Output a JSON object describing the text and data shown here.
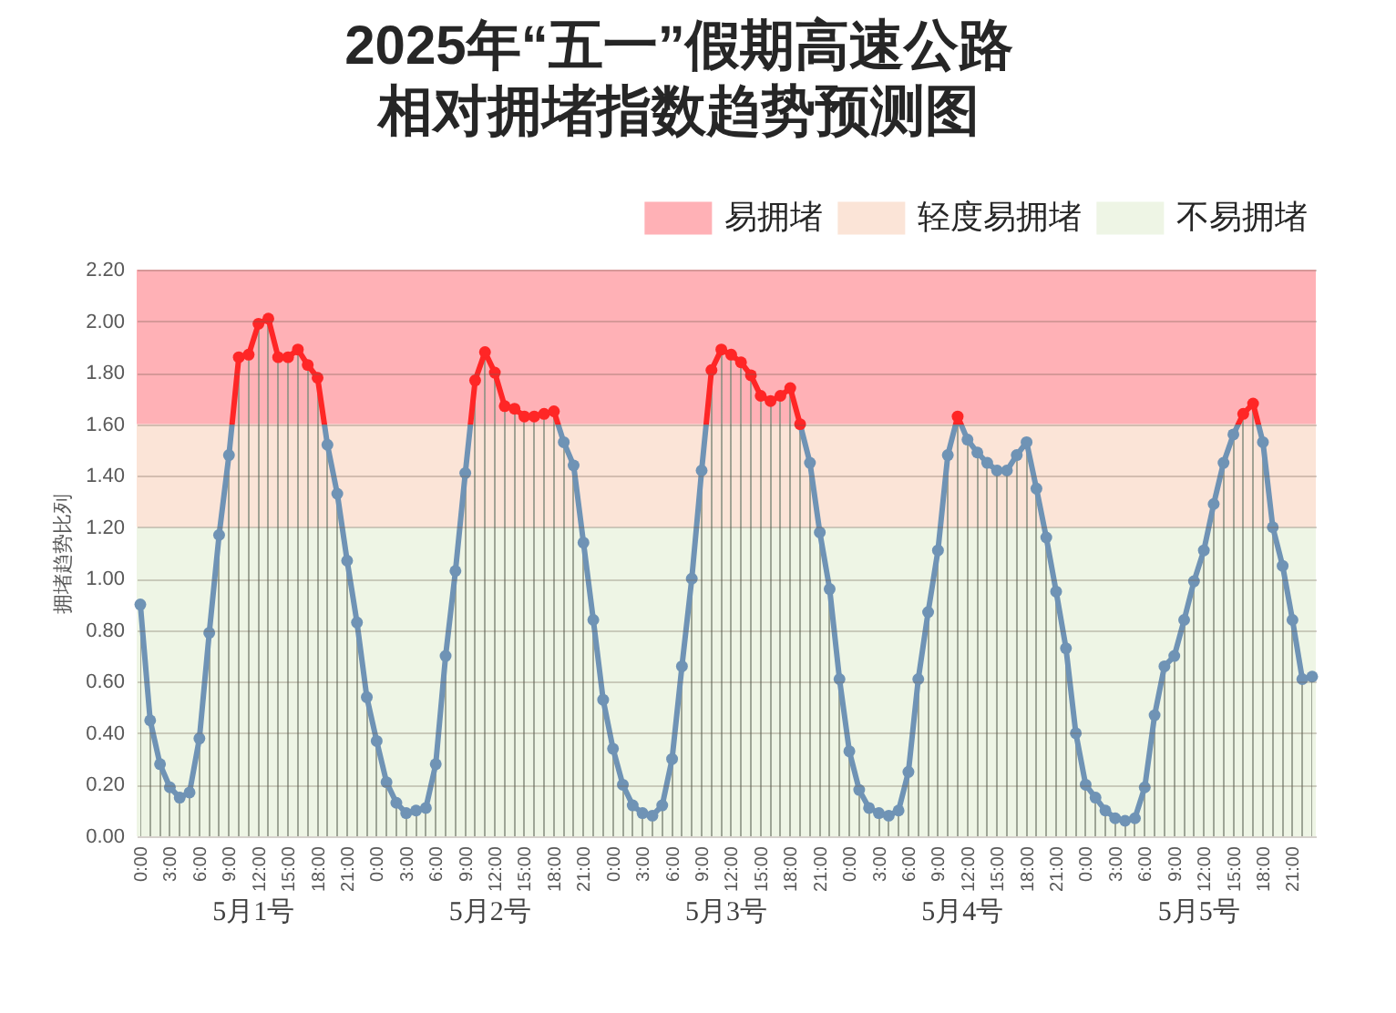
{
  "chart_data": {
    "type": "area",
    "title": "2025年“五一”假期高速公路",
    "subtitle": "相对拥堵指数趋势预测图",
    "ylabel": "拥堵趋势比列",
    "categories": [
      "0:00",
      null,
      null,
      "3:00",
      null,
      null,
      "6:00",
      null,
      null,
      "9:00",
      null,
      null,
      "12:00",
      null,
      null,
      "15:00",
      null,
      null,
      "18:00",
      null,
      null,
      "21:00",
      null,
      null,
      "0:00",
      null,
      null,
      "3:00",
      null,
      null,
      "6:00",
      null,
      null,
      "9:00",
      null,
      null,
      "12:00",
      null,
      null,
      "15:00",
      null,
      null,
      "18:00",
      null,
      null,
      "21:00",
      null,
      null,
      "0:00",
      null,
      null,
      "3:00",
      null,
      null,
      "6:00",
      null,
      null,
      "9:00",
      null,
      null,
      "12:00",
      null,
      null,
      "15:00",
      null,
      null,
      "18:00",
      null,
      null,
      "21:00",
      null,
      null,
      "0:00",
      null,
      null,
      "3:00",
      null,
      null,
      "6:00",
      null,
      null,
      "9:00",
      null,
      null,
      "12:00",
      null,
      null,
      "15:00",
      null,
      null,
      "18:00",
      null,
      null,
      "21:00",
      null,
      null,
      "0:00",
      null,
      null,
      "3:00",
      null,
      null,
      "6:00",
      null,
      null,
      "9:00",
      null,
      null,
      "12:00",
      null,
      null,
      "15:00",
      null,
      null,
      "18:00",
      null,
      null,
      "21:00",
      null,
      null
    ],
    "series": [
      {
        "color": "#6f93b5",
        "values": [
          0.9,
          0.45,
          0.28,
          0.19,
          0.15,
          0.17,
          0.38,
          0.79,
          1.17,
          1.48,
          1.86,
          1.87,
          1.99,
          2.01,
          1.86,
          1.86,
          1.89,
          1.83,
          1.78,
          1.52,
          1.33,
          1.07,
          0.83,
          0.54,
          0.37,
          0.21,
          0.13,
          0.09,
          0.1,
          0.11,
          0.28,
          0.7,
          1.03,
          1.41,
          1.77,
          1.88,
          1.8,
          1.67,
          1.66,
          1.63,
          1.63,
          1.64,
          1.65,
          1.53,
          1.44,
          1.14,
          0.84,
          0.53,
          0.34,
          0.2,
          0.12,
          0.09,
          0.08,
          0.12,
          0.3,
          0.66,
          1.0,
          1.42,
          1.81,
          1.89,
          1.87,
          1.84,
          1.79,
          1.71,
          1.69,
          1.71,
          1.74,
          1.6,
          1.45,
          1.18,
          0.96,
          0.61,
          0.33,
          0.18,
          0.11,
          0.09,
          0.08,
          0.1,
          0.25,
          0.61,
          0.87,
          1.11,
          1.48,
          1.63,
          1.54,
          1.49,
          1.45,
          1.42,
          1.42,
          1.48,
          1.53,
          1.35,
          1.16,
          0.95,
          0.73,
          0.4,
          0.2,
          0.15,
          0.1,
          0.07,
          0.06,
          0.07,
          0.19,
          0.47,
          0.66,
          0.7,
          0.84,
          0.99,
          1.11,
          1.29,
          1.45,
          1.56,
          1.64,
          1.68,
          1.53,
          1.2,
          1.05,
          0.84,
          0.61,
          0.62
        ],
        "colors": [
          "#6f93b5",
          "#6f93b5",
          "#6f93b5",
          "#6f93b5",
          "#6f93b5",
          "#6f93b5",
          "#6f93b5",
          "#6f93b5",
          "#6f93b5",
          "#6f93b5",
          "#ff2626",
          "#ff2626",
          "#ff2626",
          "#ff2626",
          "#ff2626",
          "#ff2626",
          "#ff2626",
          "#ff2626",
          "#ff2626",
          "#6f93b5",
          "#6f93b5",
          "#6f93b5",
          "#6f93b5",
          "#6f93b5",
          "#6f93b5",
          "#6f93b5",
          "#6f93b5",
          "#6f93b5",
          "#6f93b5",
          "#6f93b5",
          "#6f93b5",
          "#6f93b5",
          "#6f93b5",
          "#6f93b5",
          "#ff2626",
          "#ff2626",
          "#ff2626",
          "#ff2626",
          "#ff2626",
          "#ff2626",
          "#ff2626",
          "#ff2626",
          "#ff2626",
          "#6f93b5",
          "#6f93b5",
          "#6f93b5",
          "#6f93b5",
          "#6f93b5",
          "#6f93b5",
          "#6f93b5",
          "#6f93b5",
          "#6f93b5",
          "#6f93b5",
          "#6f93b5",
          "#6f93b5",
          "#6f93b5",
          "#6f93b5",
          "#6f93b5",
          "#ff2626",
          "#ff2626",
          "#ff2626",
          "#ff2626",
          "#ff2626",
          "#ff2626",
          "#ff2626",
          "#ff2626",
          "#ff2626",
          "#ff2626",
          "#6f93b5",
          "#6f93b5",
          "#6f93b5",
          "#6f93b5",
          "#6f93b5",
          "#6f93b5",
          "#6f93b5",
          "#6f93b5",
          "#6f93b5",
          "#6f93b5",
          "#6f93b5",
          "#6f93b5",
          "#6f93b5",
          "#6f93b5",
          "#6f93b5",
          "#ff2626",
          "#6f93b5",
          "#6f93b5",
          "#6f93b5",
          "#6f93b5",
          "#6f93b5",
          "#6f93b5",
          "#6f93b5",
          "#6f93b5",
          "#6f93b5",
          "#6f93b5",
          "#6f93b5",
          "#6f93b5",
          "#6f93b5",
          "#6f93b5",
          "#6f93b5",
          "#6f93b5",
          "#6f93b5",
          "#6f93b5",
          "#6f93b5",
          "#6f93b5",
          "#6f93b5",
          "#6f93b5",
          "#6f93b5",
          "#6f93b5",
          "#6f93b5",
          "#6f93b5",
          "#6f93b5",
          "#6f93b5",
          "#ff2626",
          "#ff2626",
          "#6f93b5",
          "#6f93b5",
          "#6f93b5",
          "#6f93b5",
          "#6f93b5",
          "#6f93b5"
        ]
      }
    ],
    "ylim": [
      0,
      2.2
    ],
    "yticks": [
      {
        "value": 0,
        "label": "0.00"
      },
      {
        "value": 0.2,
        "label": "0.20"
      },
      {
        "value": 0.4,
        "label": "0.40"
      },
      {
        "value": 0.6,
        "label": "0.60"
      },
      {
        "value": 0.8,
        "label": "0.80"
      },
      {
        "value": 1.0,
        "label": "1.00"
      },
      {
        "value": 1.2,
        "label": "1.20"
      },
      {
        "value": 1.4,
        "label": "1.40"
      },
      {
        "value": 1.6,
        "label": "1.60"
      },
      {
        "value": 1.8,
        "label": "1.80"
      },
      {
        "value": 2.0,
        "label": "2.00"
      },
      {
        "value": 2.2,
        "label": "2.20"
      }
    ],
    "bands": [
      {
        "axis": "y",
        "from": 1.6,
        "to": 2.2,
        "label": "易拥堵",
        "color": "#ffb1b6"
      },
      {
        "axis": "y",
        "from": 1.2,
        "to": 1.6,
        "label": "轻度易拥堵",
        "color": "#fbe4d7"
      },
      {
        "axis": "y",
        "from": 0,
        "to": 1.2,
        "label": "不易拥堵",
        "color": "#eef5e5"
      }
    ],
    "annotations": [
      "5月1号",
      "5月2号",
      "5月3号",
      "5月4号",
      "5月5号"
    ],
    "grid": "y",
    "legend": "top right",
    "marker": "circle",
    "line_style": "solid"
  }
}
